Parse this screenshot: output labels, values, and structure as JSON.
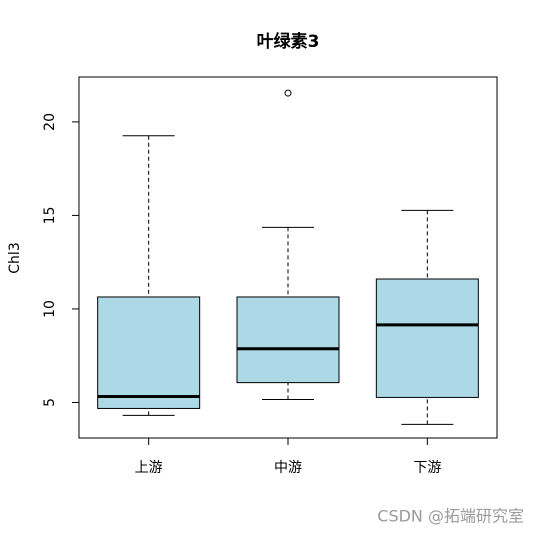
{
  "chart_data": {
    "type": "boxplot",
    "title": "叶绿素3",
    "y_label": "Chl3",
    "categories": [
      "上游",
      "中游",
      "下游"
    ],
    "min": [
      4.31,
      5.16,
      3.83
    ],
    "q1": [
      4.68,
      6.06,
      5.27
    ],
    "median": [
      5.32,
      7.87,
      9.15
    ],
    "q3": [
      10.64,
      10.64,
      11.6
    ],
    "max": [
      19.26,
      14.36,
      15.27
    ],
    "outliers": [
      [],
      [
        21.54
      ],
      []
    ],
    "color": "#add8e6",
    "ylim": [
      3.1,
      22.4
    ],
    "yticks": [
      5,
      10,
      15,
      20
    ]
  },
  "watermark": "CSDN @拓端研究室"
}
